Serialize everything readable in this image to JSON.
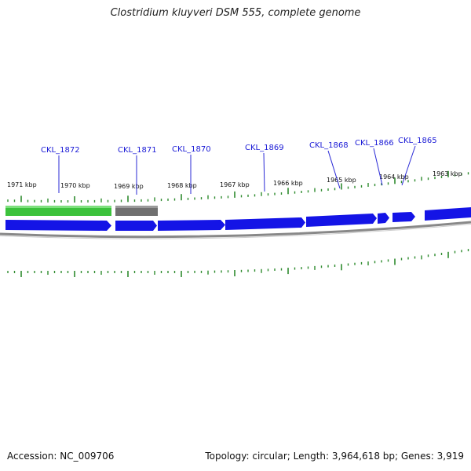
{
  "title": "Clostridium kluyveri DSM 555, complete genome",
  "footer": {
    "accession": "Accession: NC_009706",
    "stats": "Topology: circular; Length: 3,964,618 bp; Genes: 3,919"
  },
  "colors": {
    "forward_gene": "#1414e6",
    "rna_gene": "#3cc23c",
    "other_feature": "#707070",
    "backbone": "#888888",
    "tick": "#2e8b2e",
    "label": "#1a1ad6"
  },
  "ticks": {
    "labels": [
      {
        "text": "1971 kbp"
      },
      {
        "text": "1970 kbp"
      },
      {
        "text": "1969 kbp"
      },
      {
        "text": "1968 kbp"
      },
      {
        "text": "1967 kbp"
      },
      {
        "text": "1966 kbp"
      },
      {
        "text": "1965 kbp"
      },
      {
        "text": "1964 kbp"
      },
      {
        "text": "1963 kbp"
      }
    ]
  },
  "genes": [
    {
      "name": "CKL_1872"
    },
    {
      "name": "CKL_1871"
    },
    {
      "name": "CKL_1870"
    },
    {
      "name": "CKL_1869"
    },
    {
      "name": "CKL_1868"
    },
    {
      "name": "CKL_1866"
    },
    {
      "name": "CKL_1865"
    }
  ]
}
